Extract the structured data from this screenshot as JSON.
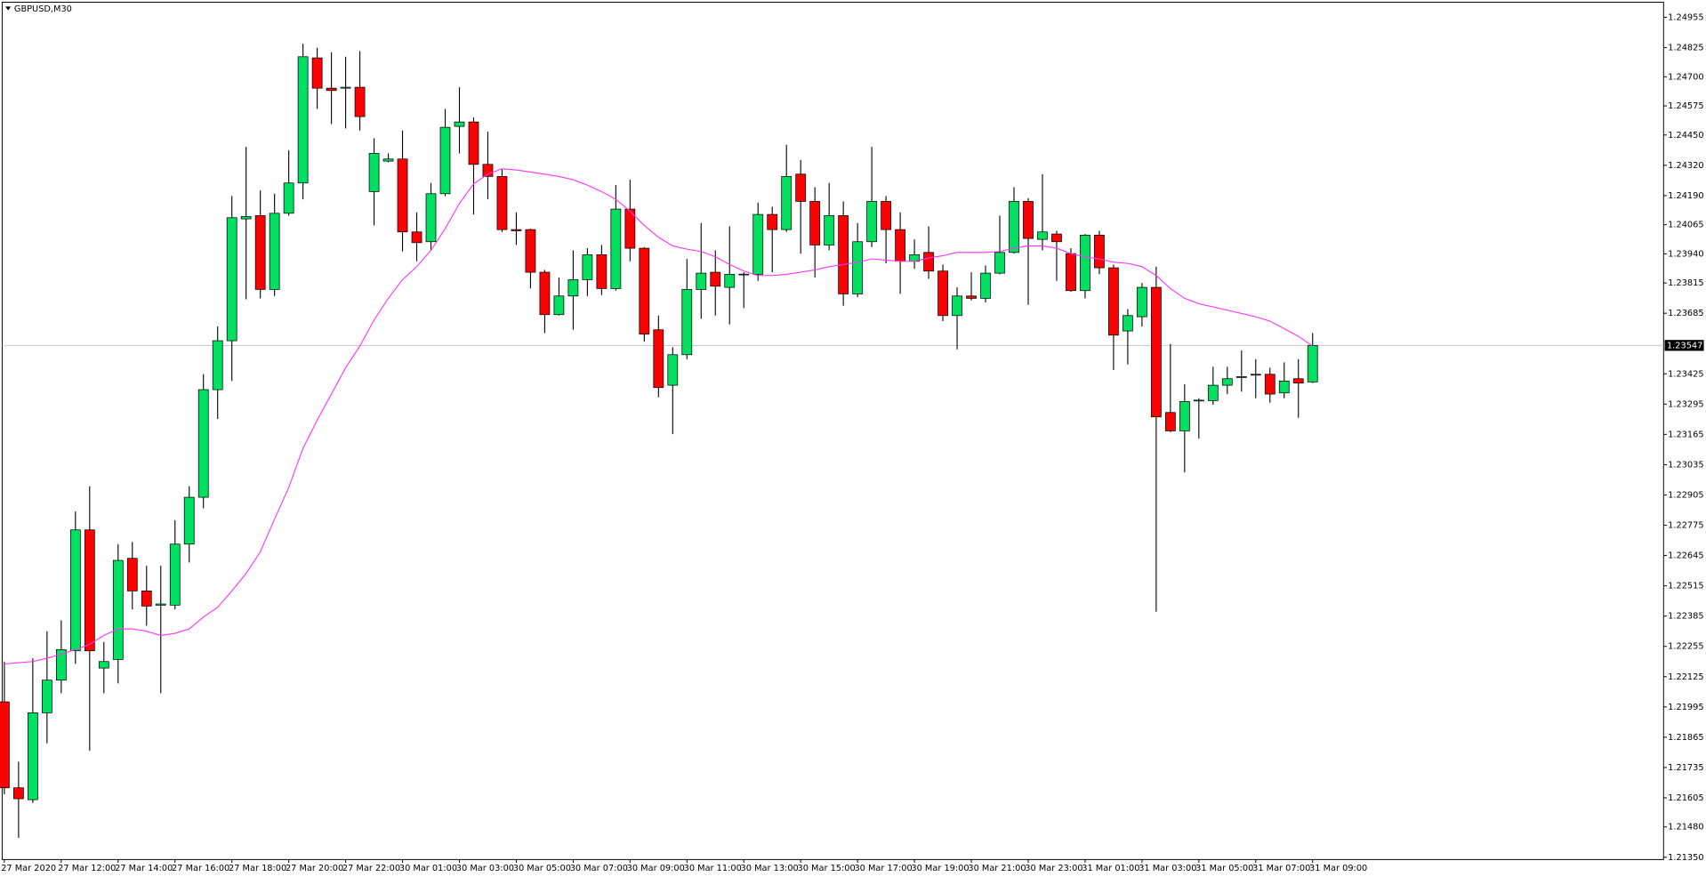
{
  "chart_data": {
    "type": "candlestick",
    "title": "GBPUSD,M30",
    "up_color": "#00e060",
    "down_color": "#ff0000",
    "categories": [
      "27 Mar 2020",
      null,
      null,
      null,
      "27 Mar 12:00",
      null,
      null,
      null,
      "27 Mar 14:00",
      null,
      null,
      null,
      "27 Mar 16:00",
      null,
      null,
      null,
      "27 Mar 18:00",
      null,
      null,
      null,
      "27 Mar 20:00",
      null,
      null,
      null,
      "27 Mar 22:00",
      null,
      null,
      null,
      "30 Mar 01:00",
      null,
      null,
      null,
      "30 Mar 03:00",
      null,
      null,
      null,
      "30 Mar 05:00",
      null,
      null,
      null,
      "30 Mar 07:00",
      null,
      null,
      null,
      "30 Mar 09:00",
      null,
      null,
      null,
      "30 Mar 11:00",
      null,
      null,
      null,
      "30 Mar 13:00",
      null,
      null,
      null,
      "30 Mar 15:00",
      null,
      null,
      null,
      "30 Mar 17:00",
      null,
      null,
      null,
      "30 Mar 19:00",
      null,
      null,
      null,
      "30 Mar 21:00",
      null,
      null,
      null,
      "30 Mar 23:00",
      null,
      null,
      null,
      "31 Mar 01:00",
      null,
      null,
      null,
      "31 Mar 03:00",
      null,
      null,
      null,
      "31 Mar 05:00",
      null,
      null,
      null,
      "31 Mar 07:00",
      null,
      null,
      null,
      "31 Mar 09:00"
    ],
    "open": [
      1.22017,
      1.21648,
      1.21597,
      1.2197,
      1.2211,
      1.22236,
      1.22755,
      1.22162,
      1.22199,
      1.22633,
      1.22493,
      1.22432,
      1.22432,
      1.22694,
      1.22895,
      1.23357,
      1.23567,
      1.2409,
      1.24104,
      1.23787,
      1.24114,
      1.24244,
      1.24781,
      1.24651,
      1.24651,
      1.24655,
      1.24207,
      1.24338,
      1.24347,
      1.24034,
      1.23992,
      1.24198,
      1.24487,
      1.24506,
      1.24324,
      1.24272,
      1.24044,
      1.24044,
      1.23861,
      1.23679,
      1.23759,
      1.23829,
      1.23936,
      1.23791,
      1.24132,
      1.23964,
      1.23614,
      1.23376,
      1.23507,
      1.23787,
      1.23861,
      1.23796,
      1.23852,
      1.23852,
      1.24109,
      1.24044,
      1.24282,
      1.24165,
      1.23978,
      1.24104,
      1.23768,
      1.23992,
      1.24165,
      1.24044,
      1.23908,
      1.23946,
      1.23866,
      1.23675,
      1.23759,
      1.23749,
      1.23857,
      1.23946,
      1.24165,
      1.24002,
      1.24025,
      1.23941,
      1.23782,
      1.2402,
      1.2388,
      1.23609,
      1.2367,
      1.23796,
      1.23259,
      1.2318,
      1.2331,
      1.2331,
      1.23376,
      1.23409,
      1.23423,
      1.23423,
      1.23343,
      1.23404,
      1.2339
    ],
    "high": [
      1.2219,
      1.2176,
      1.22204,
      1.2232,
      1.22367,
      1.22834,
      1.22942,
      1.22274,
      1.22694,
      1.22703,
      1.22601,
      1.22601,
      1.22797,
      1.22942,
      1.23423,
      1.23628,
      1.24188,
      1.24399,
      1.24212,
      1.24198,
      1.24385,
      1.24842,
      1.24824,
      1.24805,
      1.24786,
      1.2481,
      1.24436,
      1.24371,
      1.24469,
      1.24118,
      1.24244,
      1.24562,
      1.24655,
      1.24525,
      1.24464,
      1.24305,
      1.24118,
      1.24048,
      1.23871,
      1.23838,
      1.23955,
      1.23964,
      1.23978,
      1.24235,
      1.24258,
      1.23969,
      1.23675,
      1.23539,
      1.23918,
      1.24072,
      1.23955,
      1.24058,
      1.23861,
      1.2416,
      1.24142,
      1.24408,
      1.24343,
      1.24226,
      1.24244,
      1.24165,
      1.24072,
      1.24399,
      1.24188,
      1.24118,
      1.24002,
      1.24058,
      1.23894,
      1.23796,
      1.23861,
      1.2389,
      1.24104,
      1.24226,
      1.24179,
      1.24282,
      1.24039,
      1.23964,
      1.24025,
      1.24039,
      1.23894,
      1.23703,
      1.23815,
      1.23885,
      1.23553,
      1.2338,
      1.2332,
      1.23455,
      1.23455,
      1.23525,
      1.23488,
      1.23451,
      1.23474,
      1.23488,
      1.236
    ],
    "low": [
      1.2162,
      1.21433,
      1.21583,
      1.21839,
      1.22054,
      1.2218,
      1.21807,
      1.22054,
      1.22096,
      1.22414,
      1.22344,
      1.22054,
      1.22414,
      1.22615,
      1.22848,
      1.23231,
      1.23394,
      1.23745,
      1.23749,
      1.23759,
      1.24104,
      1.24174,
      1.24562,
      1.24497,
      1.24478,
      1.24469,
      1.24062,
      1.24333,
      1.2395,
      1.23908,
      1.23955,
      1.24188,
      1.24371,
      1.24109,
      1.24174,
      1.24034,
      1.23978,
      1.23791,
      1.236,
      1.23675,
      1.23614,
      1.23759,
      1.23763,
      1.23782,
      1.23908,
      1.23563,
      1.23324,
      1.23166,
      1.23488,
      1.23661,
      1.23675,
      1.23637,
      1.23707,
      1.23824,
      1.23861,
      1.24034,
      1.23941,
      1.23838,
      1.23955,
      1.23717,
      1.23754,
      1.23969,
      1.23899,
      1.23768,
      1.23876,
      1.23833,
      1.23651,
      1.2353,
      1.2374,
      1.23731,
      1.23852,
      1.23941,
      1.23721,
      1.23955,
      1.23824,
      1.23777,
      1.23749,
      1.23852,
      1.23441,
      1.23465,
      1.23628,
      1.22404,
      1.23175,
      1.23002,
      1.23147,
      1.23292,
      1.23338,
      1.23348,
      1.2332,
      1.23301,
      1.2332,
      1.23236,
      1.23385
    ],
    "close": [
      1.21648,
      1.21601,
      1.2197,
      1.2211,
      1.22241,
      1.22755,
      1.22236,
      1.2219,
      1.22624,
      1.22493,
      1.22428,
      1.22437,
      1.22694,
      1.22895,
      1.23357,
      1.23567,
      1.24095,
      1.241,
      1.23787,
      1.24114,
      1.24244,
      1.24786,
      1.24651,
      1.24641,
      1.24655,
      1.24529,
      1.24371,
      1.24347,
      1.24034,
      1.23988,
      1.24198,
      1.24483,
      1.24506,
      1.24324,
      1.24272,
      1.24044,
      1.24039,
      1.23861,
      1.23679,
      1.23759,
      1.23829,
      1.23936,
      1.23791,
      1.24132,
      1.23964,
      1.23595,
      1.23366,
      1.23507,
      1.23787,
      1.23857,
      1.23801,
      1.23852,
      1.23853,
      1.24109,
      1.24044,
      1.24272,
      1.24165,
      1.23978,
      1.24104,
      1.23768,
      1.23992,
      1.24165,
      1.24044,
      1.23908,
      1.23936,
      1.23866,
      1.23675,
      1.23759,
      1.23749,
      1.23857,
      1.23946,
      1.24165,
      1.24006,
      1.24034,
      1.23992,
      1.23782,
      1.2402,
      1.2388,
      1.23591,
      1.23675,
      1.23796,
      1.2324,
      1.2318,
      1.23306,
      1.23312,
      1.23376,
      1.23404,
      1.23413,
      1.23421,
      1.23338,
      1.23394,
      1.23385,
      1.23547
    ],
    "overlay": {
      "color": "#ff33ff",
      "values": [
        1.2218,
        1.22185,
        1.2219,
        1.22204,
        1.22222,
        1.22241,
        1.22264,
        1.22302,
        1.2233,
        1.2233,
        1.2232,
        1.22302,
        1.22311,
        1.2233,
        1.22381,
        1.22423,
        1.22493,
        1.22568,
        1.22661,
        1.22801,
        1.22937,
        1.23105,
        1.23226,
        1.23338,
        1.23451,
        1.23544,
        1.23656,
        1.23749,
        1.23829,
        1.23885,
        1.23955,
        1.24048,
        1.24156,
        1.2424,
        1.24282,
        1.24305,
        1.243,
        1.24291,
        1.24282,
        1.24272,
        1.24258,
        1.24235,
        1.24207,
        1.24174,
        1.24123,
        1.24062,
        1.24011,
        1.23974,
        1.2396,
        1.2395,
        1.23927,
        1.23894,
        1.23866,
        1.23847,
        1.23847,
        1.23852,
        1.23861,
        1.23871,
        1.23885,
        1.23894,
        1.23904,
        1.23918,
        1.23913,
        1.23908,
        1.23908,
        1.23922,
        1.23932,
        1.23946,
        1.23946,
        1.23946,
        1.2395,
        1.23964,
        1.23974,
        1.23974,
        1.23964,
        1.23941,
        1.23927,
        1.23918,
        1.23904,
        1.23899,
        1.23885,
        1.23847,
        1.23791,
        1.23749,
        1.23726,
        1.23712,
        1.23698,
        1.23684,
        1.2367,
        1.23651,
        1.23619,
        1.23586,
        1.23544
      ]
    },
    "last_price": 1.23547,
    "ylim": [
      1.2134,
      1.2502
    ],
    "yticks": [
      1.24955,
      1.24825,
      {
        "value": 1.247,
        "label": "1.24700"
      },
      1.24575,
      {
        "value": 1.2445,
        "label": "1.24450"
      },
      {
        "value": 1.2432,
        "label": "1.24320"
      },
      {
        "value": 1.2419,
        "label": "1.24190"
      },
      1.24065,
      {
        "value": 1.2394,
        "label": "1.23940"
      },
      1.23815,
      1.23685,
      1.23425,
      1.23295,
      1.23165,
      1.23035,
      1.22905,
      1.22775,
      1.22645,
      1.22515,
      1.22385,
      1.22255,
      1.22125,
      1.21995,
      1.21865,
      1.21735,
      1.21605,
      {
        "value": 1.2148,
        "label": "1.21480"
      },
      {
        "value": 1.2135,
        "label": "1.21350"
      }
    ]
  }
}
